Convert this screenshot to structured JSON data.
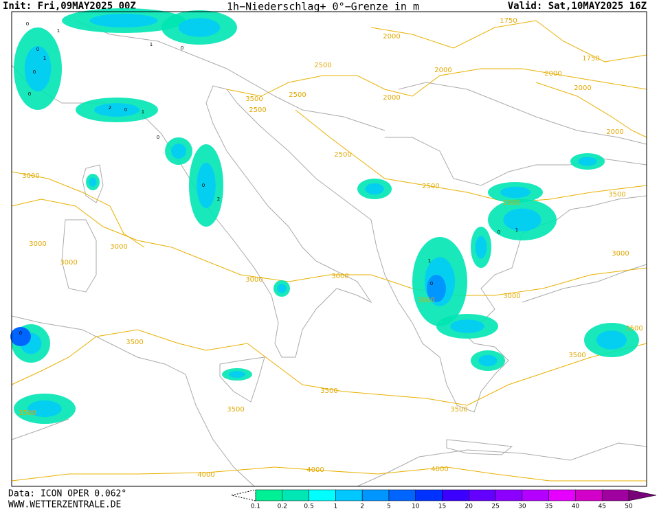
{
  "header": {
    "init": "Init: Fri,09MAY2025 00Z",
    "title": "1h−Niederschlag+ 0°−Grenze in m",
    "valid": "Valid: Sat,10MAY2025 16Z"
  },
  "footer": {
    "source": "Data: ICON OPER 0.062°",
    "website": "WWW.WETTERZENTRALE.DE"
  },
  "legend": {
    "values": [
      0.1,
      0.2,
      0.5,
      1,
      2,
      5,
      10,
      15,
      20,
      25,
      30,
      35,
      40,
      45,
      50
    ],
    "colors": [
      "#00f096",
      "#00e6b4",
      "#00ffff",
      "#00c8ff",
      "#0096ff",
      "#0064ff",
      "#0032ff",
      "#3c00ff",
      "#6400ff",
      "#8c00ff",
      "#b400ff",
      "#e600ff",
      "#d200c8",
      "#a000a0",
      "#780078"
    ]
  },
  "contour_labels": [
    1750,
    2000,
    1750,
    2500,
    2000,
    2000,
    2000,
    2500,
    3500,
    2500,
    2000,
    2000,
    2500,
    3000,
    2500,
    2000,
    3500,
    3000,
    3000,
    3000,
    3000,
    3000,
    3000,
    3000,
    3000,
    3500,
    3500,
    3500,
    3500,
    3500,
    3500,
    4000,
    4000,
    4000,
    3500
  ],
  "precip_labels": [
    0,
    1,
    0,
    1,
    0,
    0,
    1,
    0,
    2,
    0,
    1,
    0,
    0,
    2,
    1,
    0,
    1,
    0,
    0
  ]
}
